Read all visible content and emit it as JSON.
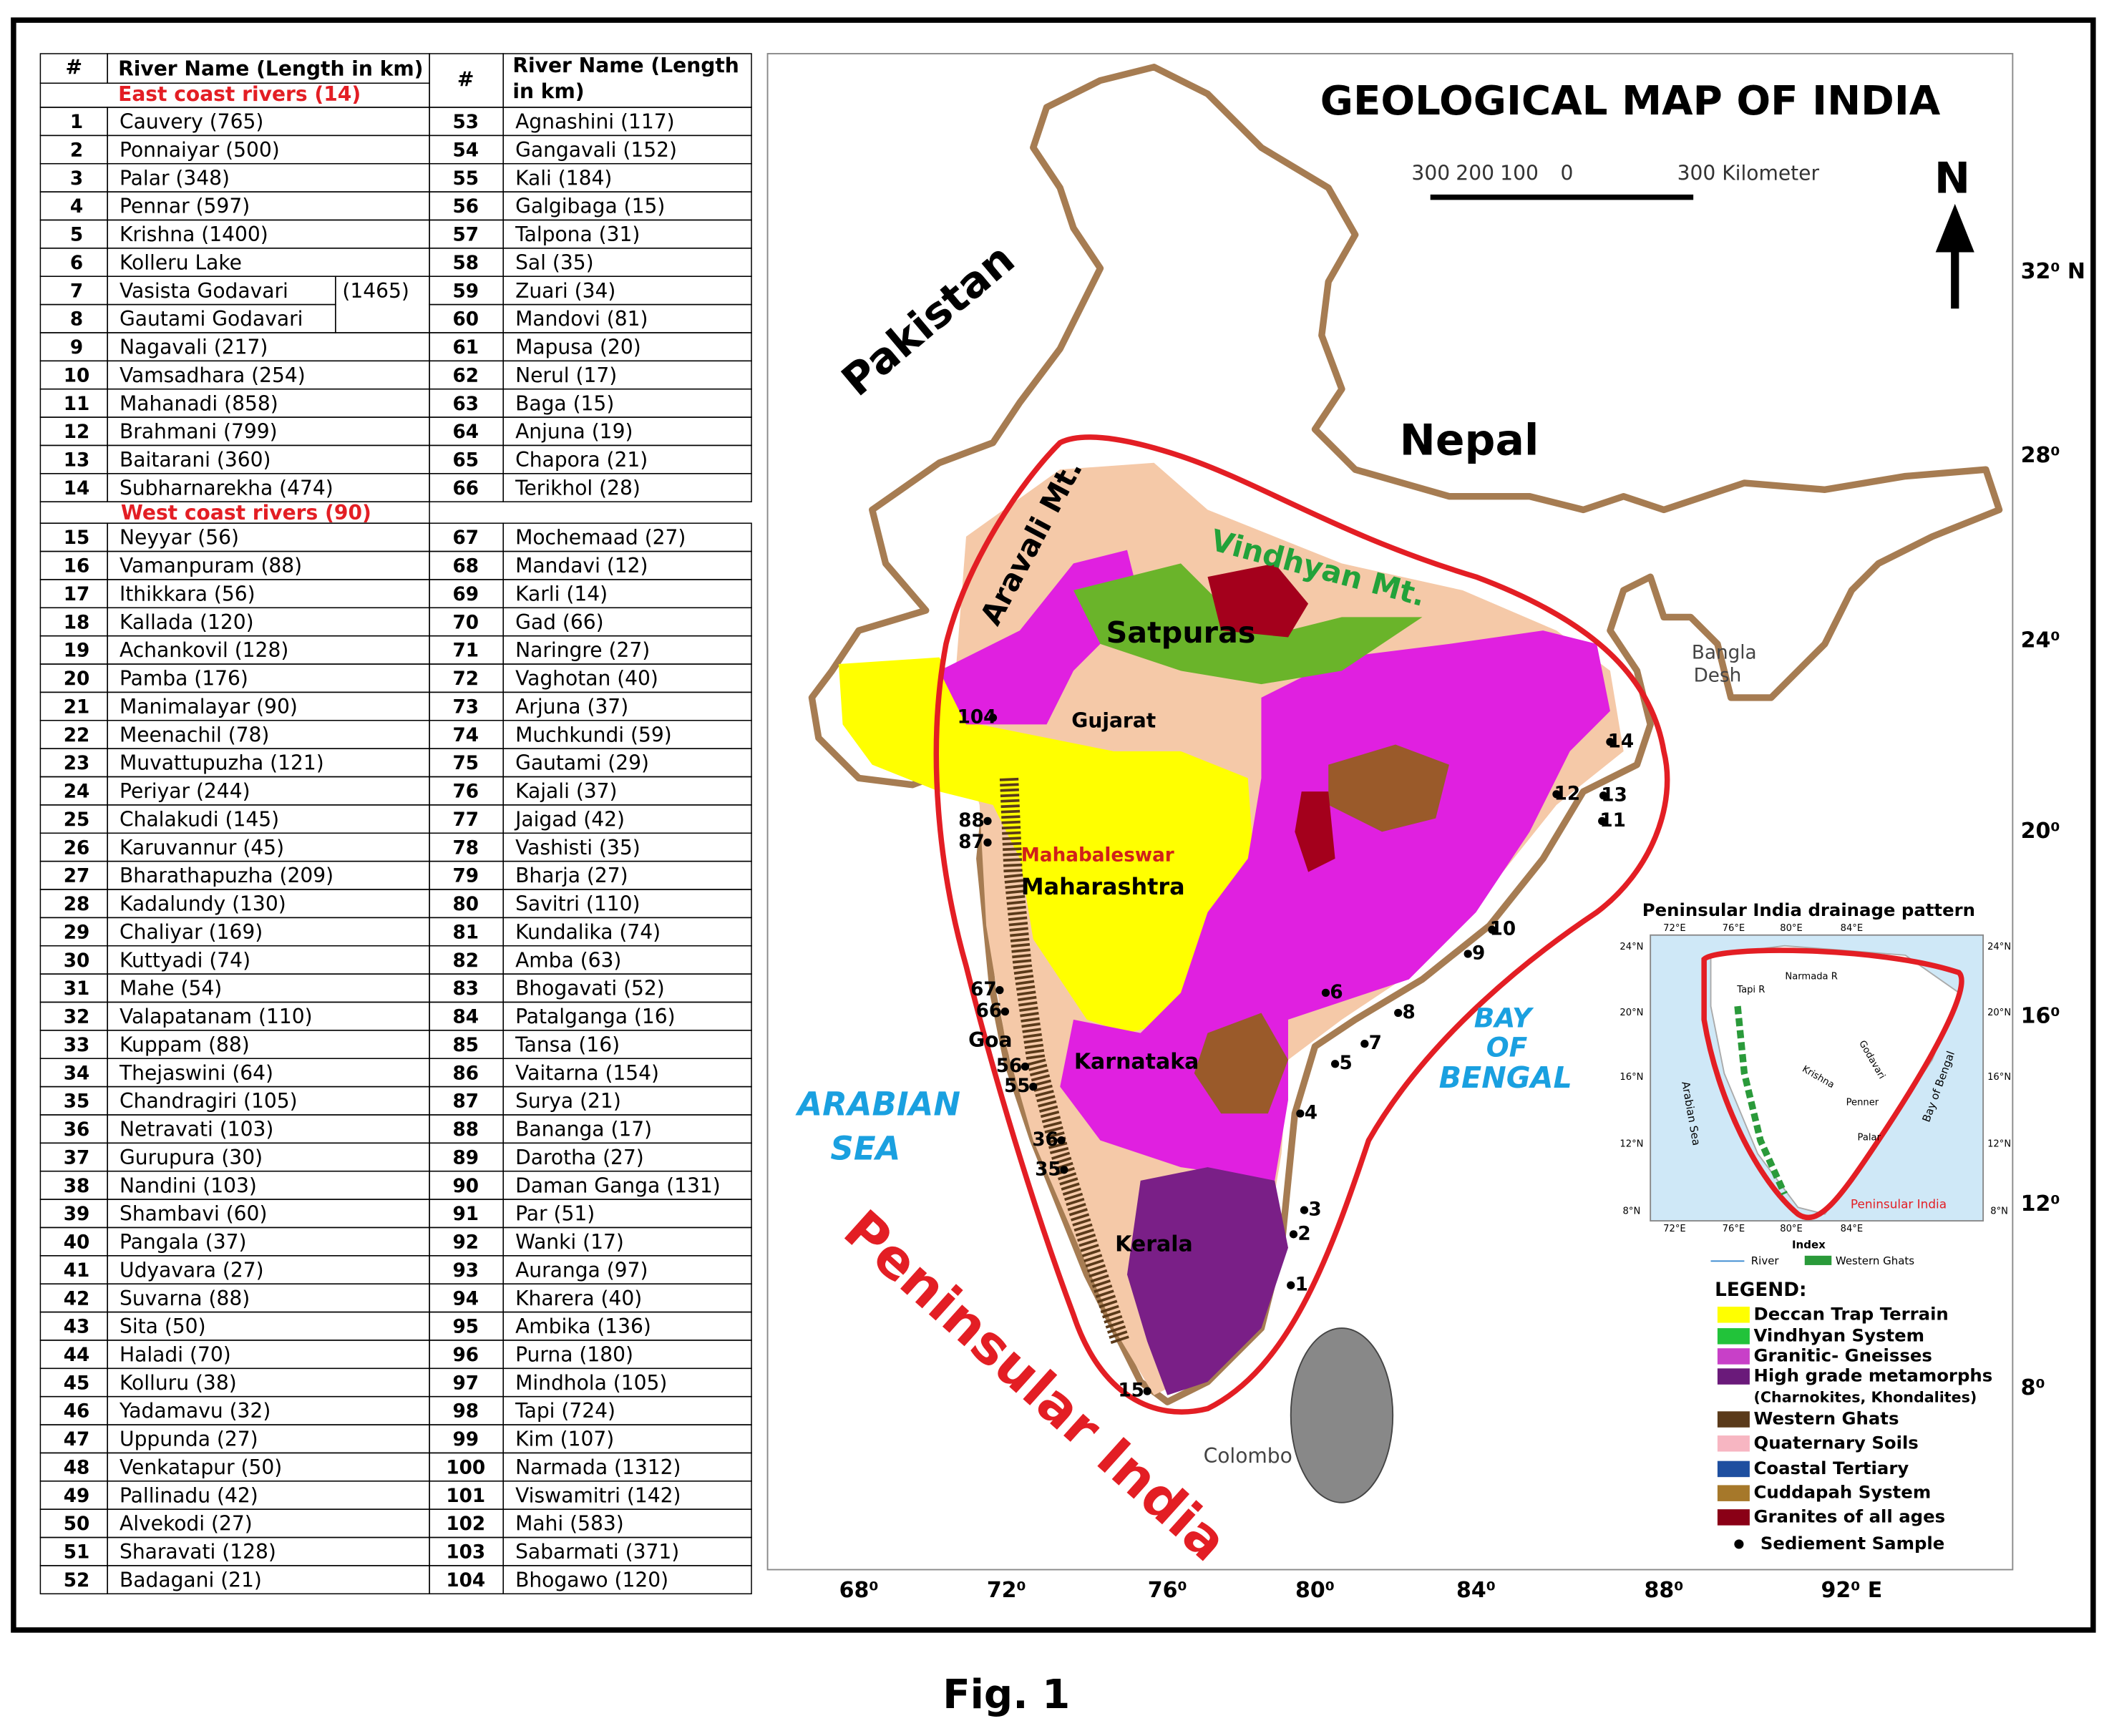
{
  "table": {
    "headers": [
      "#",
      "River Name (Length in km)",
      "#",
      "River Name (Length in km)"
    ],
    "east_coast_title": "East coast rivers (14)",
    "west_coast_title": "West coast rivers (90)",
    "godavari_length": "(1465)",
    "rows": [
      [
        1,
        "Cauvery (765)",
        53,
        "Agnashini (117)"
      ],
      [
        2,
        "Ponnaiyar (500)",
        54,
        "Gangavali (152)"
      ],
      [
        3,
        "Palar (348)",
        55,
        "Kali (184)"
      ],
      [
        4,
        "Pennar (597)",
        56,
        "Galgibaga (15)"
      ],
      [
        5,
        "Krishna (1400)",
        57,
        "Talpona (31)"
      ],
      [
        6,
        "Kolleru Lake",
        58,
        "Sal (35)"
      ],
      [
        7,
        "Vasista Godavari",
        59,
        "Zuari (34)"
      ],
      [
        8,
        "Gautami Godavari",
        60,
        "Mandovi (81)"
      ],
      [
        9,
        "Nagavali (217)",
        61,
        "Mapusa (20)"
      ],
      [
        10,
        "Vamsadhara (254)",
        62,
        "Nerul (17)"
      ],
      [
        11,
        "Mahanadi (858)",
        63,
        "Baga (15)"
      ],
      [
        12,
        "Brahmani (799)",
        64,
        "Anjuna (19)"
      ],
      [
        13,
        "Baitarani (360)",
        65,
        "Chapora (21)"
      ],
      [
        14,
        "Subharnarekha (474)",
        66,
        "Terikhol (28)"
      ],
      [
        15,
        "Neyyar (56)",
        67,
        "Mochemaad (27)"
      ],
      [
        16,
        "Vamanpuram (88)",
        68,
        "Mandavi (12)"
      ],
      [
        17,
        "Ithikkara (56)",
        69,
        "Karli (14)"
      ],
      [
        18,
        "Kallada (120)",
        70,
        "Gad (66)"
      ],
      [
        19,
        "Achankovil (128)",
        71,
        "Naringre (27)"
      ],
      [
        20,
        "Pamba (176)",
        72,
        "Vaghotan (40)"
      ],
      [
        21,
        "Manimalayar (90)",
        73,
        "Arjuna (37)"
      ],
      [
        22,
        "Meenachil (78)",
        74,
        "Muchkundi (59)"
      ],
      [
        23,
        "Muvattupuzha (121)",
        75,
        "Gautami (29)"
      ],
      [
        24,
        "Periyar (244)",
        76,
        "Kajali (37)"
      ],
      [
        25,
        "Chalakudi (145)",
        77,
        "Jaigad (42)"
      ],
      [
        26,
        "Karuvannur (45)",
        78,
        "Vashisti (35)"
      ],
      [
        27,
        "Bharathapuzha (209)",
        79,
        "Bharja (27)"
      ],
      [
        28,
        "Kadalundy (130)",
        80,
        "Savitri (110)"
      ],
      [
        29,
        "Chaliyar (169)",
        81,
        "Kundalika (74)"
      ],
      [
        30,
        "Kuttyadi (74)",
        82,
        "Amba  (63)"
      ],
      [
        31,
        "Mahe (54)",
        83,
        "Bhogavati (52)"
      ],
      [
        32,
        "Valapatanam (110)",
        84,
        "Patalganga (16)"
      ],
      [
        33,
        "Kuppam (88)",
        85,
        "Tansa (16)"
      ],
      [
        34,
        "Thejaswini (64)",
        86,
        "Vaitarna (154)"
      ],
      [
        35,
        "Chandragiri (105)",
        87,
        "Surya (21)"
      ],
      [
        36,
        "Netravati (103)",
        88,
        "Bananga (17)"
      ],
      [
        37,
        "Gurupura (30)",
        89,
        "Darotha (27)"
      ],
      [
        38,
        "Nandini (103)",
        90,
        "Daman Ganga (131)"
      ],
      [
        39,
        "Shambavi (60)",
        91,
        "Par (51)"
      ],
      [
        40,
        "Pangala (37)",
        92,
        "Wanki (17)"
      ],
      [
        41,
        "Udyavara (27)",
        93,
        "Auranga (97)"
      ],
      [
        42,
        "Suvarna (88)",
        94,
        "Kharera (40)"
      ],
      [
        43,
        "Sita (50)",
        95,
        "Ambika (136)"
      ],
      [
        44,
        "Haladi (70)",
        96,
        "Purna (180)"
      ],
      [
        45,
        "Kolluru (38)",
        97,
        "Mindhola (105)"
      ],
      [
        46,
        "Yadamavu (32)",
        98,
        "Tapi (724)"
      ],
      [
        47,
        "Uppunda (27)",
        99,
        "Kim (107)"
      ],
      [
        48,
        "Venkatapur (50)",
        100,
        "Narmada (1312)"
      ],
      [
        49,
        "Pallinadu (42)",
        101,
        "Viswamitri (142)"
      ],
      [
        50,
        "Alvekodi (27)",
        102,
        "Mahi (583)"
      ],
      [
        51,
        "Sharavati (128)",
        103,
        "Sabarmati (371)"
      ],
      [
        52,
        "Badagani (21)",
        104,
        "Bhogawo (120)"
      ]
    ]
  },
  "map": {
    "title": "GEOLOGICAL MAP OF INDIA",
    "scale": [
      "300",
      "200",
      "100",
      "0",
      "300 Kilometer"
    ],
    "north": "N",
    "longitudes": [
      "68⁰",
      "72⁰",
      "76⁰",
      "80⁰",
      "84⁰",
      "88⁰",
      "92⁰ E"
    ],
    "latitudes": [
      "32⁰ N",
      "28⁰",
      "24⁰",
      "20⁰",
      "16⁰",
      "12⁰",
      "8⁰"
    ],
    "labels": {
      "pakistan": "Pakistan",
      "nepal": "Nepal",
      "bangla": "Bangla",
      "desh": "Desh",
      "aravali": "Aravali Mt.",
      "vindhyan": "Vindhyan Mt.",
      "satpuras": "Satpuras",
      "gujarat": "Gujarat",
      "mahabaleswar": "Mahabaleswar",
      "maharashtra": "Maharashtra",
      "goa": "Goa",
      "karnataka": "Karnataka",
      "kerala": "Kerala",
      "colombo": "Colombo",
      "arabian": "ARABIAN",
      "sea": "SEA",
      "bay": "BAY",
      "of": "OF",
      "bengal": "BENGAL",
      "peninsular": "Peninsular India"
    },
    "samples": [
      "104",
      "88",
      "87",
      "67",
      "66",
      "56",
      "55",
      "36",
      "35",
      "15",
      "1",
      "2",
      "3",
      "4",
      "5",
      "6",
      "7",
      "8",
      "9",
      "10",
      "11",
      "12",
      "13",
      "14"
    ],
    "inset": {
      "title": "Peninsular India drainage pattern",
      "lon": [
        "72°E",
        "76°E",
        "80°E",
        "84°E"
      ],
      "lat": [
        "24°N",
        "20°N",
        "16°N",
        "12°N",
        "8°N"
      ],
      "rivers": [
        "Narmada R",
        "Tapi R",
        "Godavari",
        "Krishna",
        "Penner",
        "Palar"
      ],
      "seas": [
        "Arabian Sea",
        "Bay of Bengal"
      ],
      "label": "Peninsular India",
      "index": "Index",
      "key": [
        "River",
        "Western Ghats"
      ]
    },
    "legend": {
      "title": "LEGEND:",
      "items": [
        "Deccan Trap Terrain",
        "Vindhyan System",
        "Granitic- Gneisses",
        "High grade metamorphs",
        "(Charnokites, Khondalites)",
        "Western Ghats",
        "Quaternary Soils",
        "Coastal Tertiary",
        "Cuddapah System",
        "Granites of all ages",
        "Sediement Sample"
      ]
    }
  },
  "caption": "Fig. 1"
}
